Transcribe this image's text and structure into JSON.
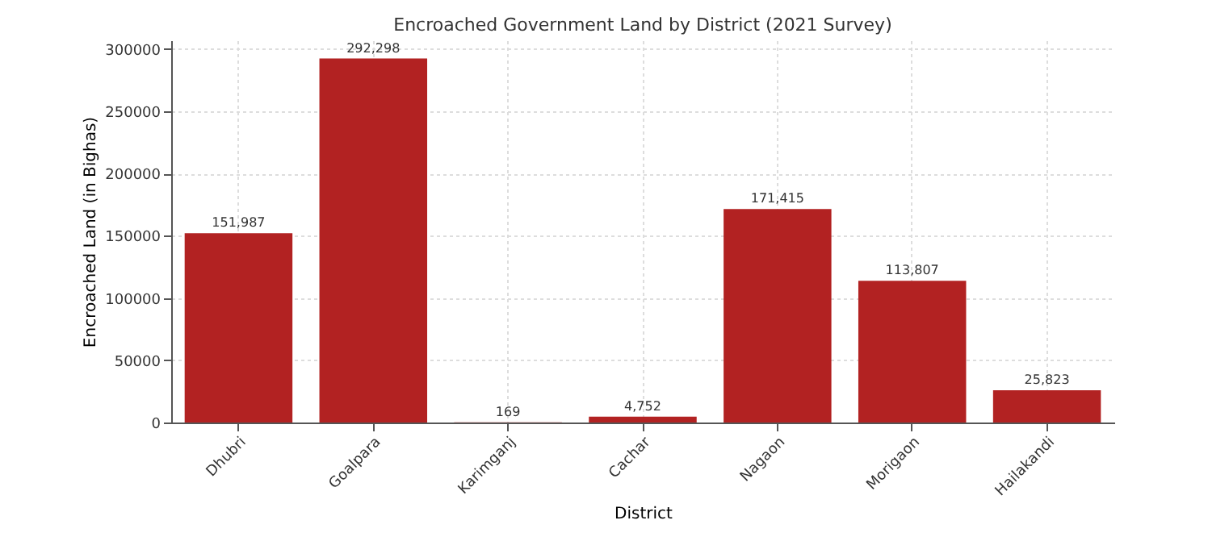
{
  "chart_data": {
    "type": "bar",
    "title": "Encroached Government Land by District (2021 Survey)",
    "xlabel": "District",
    "ylabel": "Encroached Land (in Bighas)",
    "categories": [
      "Dhubri",
      "Goalpara",
      "Karimganj",
      "Cachar",
      "Nagaon",
      "Morigaon",
      "Hailakandi"
    ],
    "values": [
      151987,
      292298,
      169,
      4752,
      171415,
      113807,
      25823
    ],
    "value_labels": [
      "151,987",
      "292,298",
      "169",
      "4,752",
      "171,415",
      "113,807",
      "25,823"
    ],
    "color": "#b22222",
    "ylim": [
      0,
      306913
    ],
    "yticks": [
      0,
      50000,
      100000,
      150000,
      200000,
      250000,
      300000
    ],
    "grid": true
  }
}
